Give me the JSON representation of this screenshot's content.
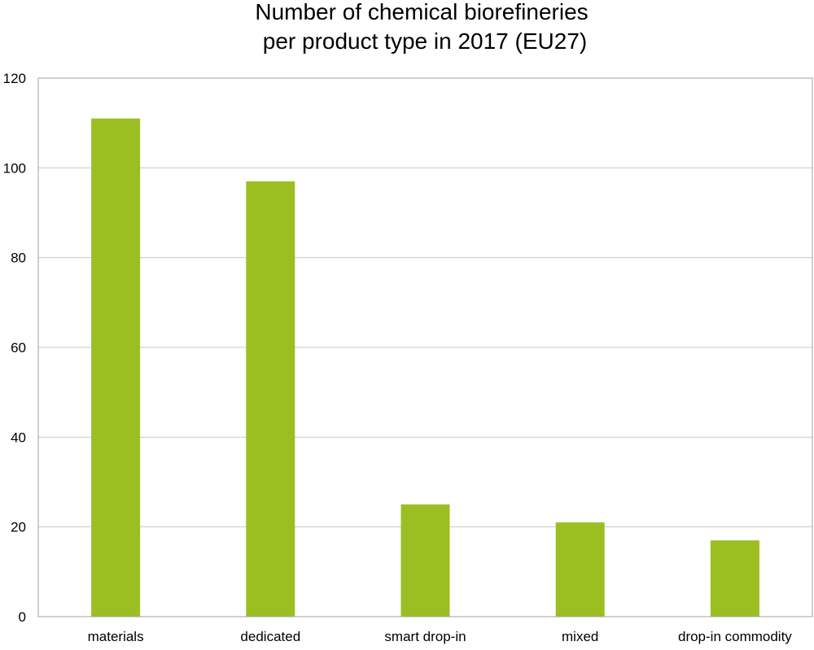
{
  "chart_data": {
    "type": "bar",
    "title_lines": [
      "Number of chemical biorefineries",
      "per product type in 2017 (EU27)"
    ],
    "xlabel": "",
    "ylabel": "",
    "categories": [
      "materials",
      "dedicated",
      "smart drop-in",
      "mixed",
      "drop-in commodity"
    ],
    "values": [
      111,
      97,
      25,
      21,
      17
    ],
    "ylim": [
      0,
      120
    ],
    "yticks": [
      0,
      20,
      40,
      60,
      80,
      100,
      120
    ],
    "grid": true,
    "legend": "none",
    "colors": {
      "bar": "#9bbf21",
      "grid": "#c8c8c8",
      "frame": "#a0a0a0"
    }
  }
}
